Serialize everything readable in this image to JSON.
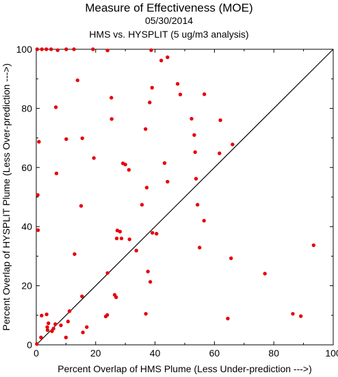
{
  "title": "Measure of Effectiveness (MOE)",
  "date": "05/30/2014",
  "subtitle": "HMS vs. HYSPLIT  (5 ug/m3 analysis)",
  "chart_data": {
    "type": "scatter",
    "title": "Measure of Effectiveness (MOE)",
    "xlabel": "Percent Overlap of HMS Plume (Less Under-prediction --->)",
    "ylabel": "Percent Overlap of HYSPLIT Plume (Less Over-prediction --->)",
    "xlim": [
      0,
      100
    ],
    "ylim": [
      0,
      100
    ],
    "xticks": [
      "0",
      "20",
      "40",
      "60",
      "80",
      "100"
    ],
    "yticks": [
      "0",
      "20",
      "40",
      "60",
      "80",
      "100"
    ],
    "grid": false,
    "reference_line": "y = x",
    "marker_color": "#e8000b",
    "line_color": "#000000",
    "series": [
      {
        "x": [
          0.3,
          1.9,
          3.4,
          5.0,
          7.2,
          10.1,
          12.7,
          19.1,
          24.0,
          38.7,
          13.9,
          42.1,
          44.2,
          48.5,
          56.6,
          39.0,
          38.2,
          25.3,
          6.6,
          47.6,
          52.3,
          53.2,
          62.0,
          25.4,
          36.8,
          0.9,
          10.1,
          15.5,
          66.1,
          19.4,
          29.2,
          30.0,
          31.2,
          43.2,
          53.5,
          61.7,
          0.5,
          6.8,
          53.8,
          44.2,
          37.2,
          15.1,
          35.6,
          54.3,
          56.5,
          0.6,
          27.3,
          28.2,
          27.1,
          28.7,
          31.4,
          39.1,
          40.5,
          55.0,
          33.7,
          12.9,
          65.6,
          24.0,
          37.6,
          38.4,
          77.0,
          15.4,
          26.4,
          26.9,
          1.8,
          3.5,
          11.2,
          4.1,
          36.9,
          23.9,
          23.4,
          64.5,
          86.4,
          89.1,
          93.4,
          3.7,
          3.8,
          5.3,
          5.8,
          6.4,
          8.3,
          10.7,
          17.0,
          15.7,
          10.0,
          1.6,
          0.2
        ],
        "y": [
          100.0,
          100.0,
          100.0,
          100.0,
          99.7,
          100.0,
          100.0,
          100.0,
          99.6,
          99.7,
          89.5,
          96.2,
          97.3,
          84.7,
          84.8,
          87.0,
          82.0,
          83.6,
          80.4,
          88.3,
          76.5,
          71.0,
          76.0,
          76.4,
          73.0,
          68.7,
          69.6,
          69.9,
          67.8,
          63.2,
          61.4,
          61.0,
          59.2,
          61.5,
          65.2,
          64.8,
          50.7,
          58.0,
          56.2,
          55.2,
          53.2,
          47.0,
          47.4,
          47.4,
          42.0,
          38.8,
          38.7,
          38.3,
          36.0,
          36.0,
          35.7,
          37.9,
          37.6,
          32.9,
          31.9,
          30.7,
          29.3,
          24.3,
          24.8,
          21.3,
          24.1,
          16.4,
          16.9,
          16.1,
          9.9,
          10.3,
          11.4,
          7.3,
          10.5,
          10.1,
          9.6,
          8.9,
          10.5,
          9.7,
          33.7,
          6.0,
          5.0,
          4.6,
          5.5,
          7.0,
          6.6,
          7.9,
          6.0,
          4.2,
          2.5,
          2.5,
          0.3
        ]
      }
    ]
  }
}
